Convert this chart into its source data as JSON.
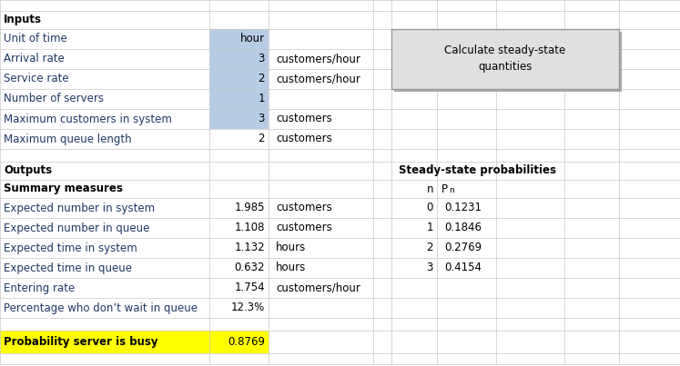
{
  "bg_color": "#ffffff",
  "grid_color": "#c8c8c8",
  "inputs_header": "Inputs",
  "outputs_header": "Outputs",
  "summary_header": "Summary measures",
  "steady_state_header": "Steady-state probabilities",
  "input_rows": [
    {
      "label": "Unit of time",
      "value": "hour",
      "unit": "",
      "blue_bg": true
    },
    {
      "label": "Arrival rate",
      "value": "3",
      "unit": "customers/hour",
      "blue_bg": true
    },
    {
      "label": "Service rate",
      "value": "2",
      "unit": "customers/hour",
      "blue_bg": true
    },
    {
      "label": "Number of servers",
      "value": "1",
      "unit": "",
      "blue_bg": true
    },
    {
      "label": "Maximum customers in system",
      "value": "3",
      "unit": "customers",
      "blue_bg": true
    },
    {
      "label": "Maximum queue length",
      "value": "2",
      "unit": "customers",
      "blue_bg": false
    }
  ],
  "output_rows": [
    {
      "label": "Expected number in system",
      "value": "1.985",
      "unit": "customers"
    },
    {
      "label": "Expected number in queue",
      "value": "1.108",
      "unit": "customers"
    },
    {
      "label": "Expected time in system",
      "value": "1.132",
      "unit": "hours"
    },
    {
      "label": "Expected time in queue",
      "value": "0.632",
      "unit": "hours"
    },
    {
      "label": "Entering rate",
      "value": "1.754",
      "unit": "customers/hour"
    },
    {
      "label": "Percentage who don’t wait in queue",
      "value": "12.3%",
      "unit": ""
    }
  ],
  "prob_rows": [
    {
      "n": "0",
      "p": "0.1231"
    },
    {
      "n": "1",
      "p": "0.1846"
    },
    {
      "n": "2",
      "p": "0.2769"
    },
    {
      "n": "3",
      "p": "0.4154"
    }
  ],
  "busy_label": "Probability server is busy",
  "busy_value": "0.8769",
  "button_text": "Calculate steady-state\nquantities",
  "blue_cell_color": "#b8cce4",
  "yellow_bg": "#ffff00",
  "label_color": "#1f3864",
  "black": "#000000",
  "font_size": 8.5
}
